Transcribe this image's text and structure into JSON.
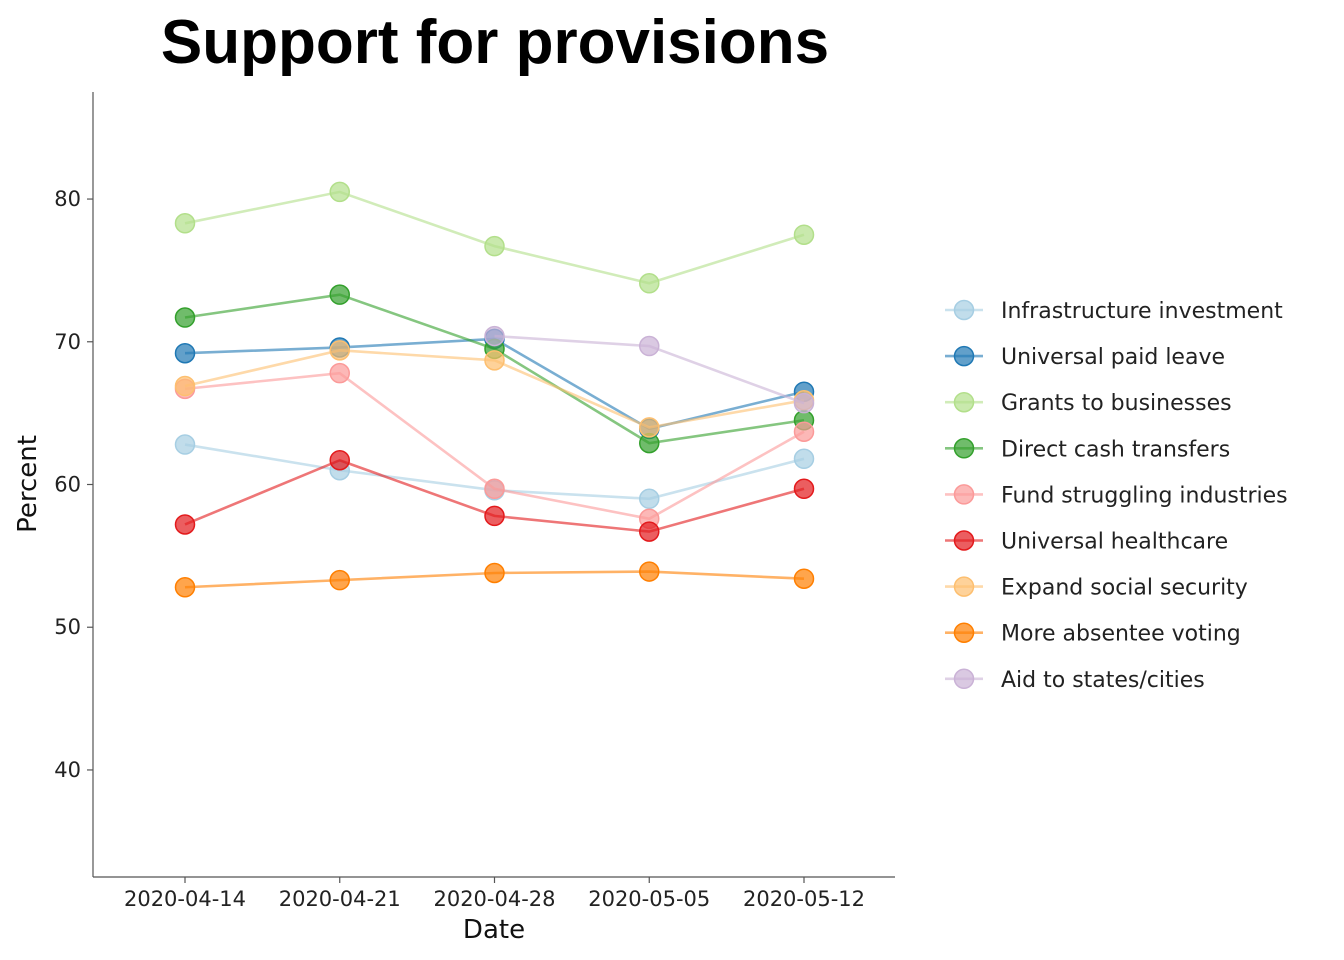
{
  "chart_data": {
    "type": "line",
    "title": "Support for provisions",
    "xlabel": "Date",
    "ylabel": "Percent",
    "categories": [
      "2020-04-14",
      "2020-04-21",
      "2020-04-28",
      "2020-05-05",
      "2020-05-12"
    ],
    "ylim": [
      32.5,
      87.5
    ],
    "yticks": [
      40,
      50,
      60,
      70,
      80
    ],
    "legend_position": "right",
    "grid": false,
    "series": [
      {
        "name": "Infrastructure investment",
        "color": "#a6cee3",
        "values": [
          62.8,
          61.0,
          59.6,
          59.0,
          61.8
        ]
      },
      {
        "name": "Universal paid leave",
        "color": "#1f78b4",
        "values": [
          69.2,
          69.6,
          70.2,
          63.9,
          66.5
        ]
      },
      {
        "name": "Grants to businesses",
        "color": "#b2df8a",
        "values": [
          78.3,
          80.5,
          76.7,
          74.1,
          77.5
        ]
      },
      {
        "name": "Direct cash transfers",
        "color": "#33a02c",
        "values": [
          71.7,
          73.3,
          69.5,
          62.9,
          64.5
        ]
      },
      {
        "name": "Fund struggling industries",
        "color": "#fb9a99",
        "values": [
          66.7,
          67.8,
          59.7,
          57.6,
          63.7
        ]
      },
      {
        "name": "Universal healthcare",
        "color": "#e31a1c",
        "values": [
          57.2,
          61.7,
          57.8,
          56.7,
          59.7
        ]
      },
      {
        "name": "Expand social security",
        "color": "#fdbf6f",
        "values": [
          66.9,
          69.4,
          68.7,
          64.0,
          65.9
        ]
      },
      {
        "name": "More absentee voting",
        "color": "#ff7f00",
        "values": [
          52.8,
          53.3,
          53.8,
          53.9,
          53.4
        ]
      },
      {
        "name": "Aid to states/cities",
        "color": "#cab2d6",
        "values": [
          null,
          null,
          70.4,
          69.7,
          65.7
        ]
      }
    ]
  }
}
